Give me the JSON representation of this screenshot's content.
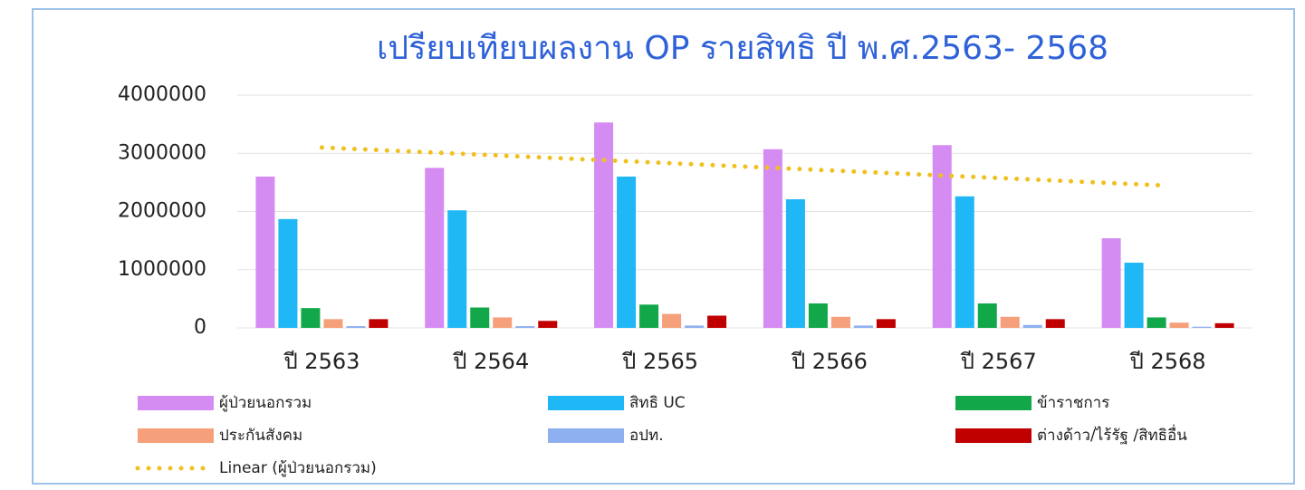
{
  "chart_data": {
    "type": "bar",
    "title": "เปรียบเทียบผลงาน OP รายสิทธิ ปี พ.ศ.2563- 2568",
    "categories": [
      "ปี 2563",
      "ปี 2564",
      "ปี 2565",
      "ปี 2566",
      "ปี 2567",
      "ปี 2568"
    ],
    "series": [
      {
        "name": "ผู้ป่วยนอกรวม",
        "color": "#d58cf2",
        "values": [
          2600000,
          2750000,
          3530000,
          3070000,
          3140000,
          1540000
        ]
      },
      {
        "name": "สิทธิ UC",
        "color": "#1fb7f5",
        "values": [
          1870000,
          2020000,
          2600000,
          2210000,
          2260000,
          1120000
        ]
      },
      {
        "name": "ข้าราชการ",
        "color": "#12a84a",
        "values": [
          340000,
          350000,
          400000,
          420000,
          420000,
          180000
        ]
      },
      {
        "name": "ประกันสังคม",
        "color": "#f5a07a",
        "values": [
          150000,
          180000,
          240000,
          190000,
          190000,
          90000
        ]
      },
      {
        "name": "อปท.",
        "color": "#8fb0f0",
        "values": [
          30000,
          30000,
          40000,
          40000,
          50000,
          20000
        ]
      },
      {
        "name": "ต่างด้าว/ไร้รัฐ /สิทธิอื่น",
        "color": "#c00000",
        "values": [
          150000,
          120000,
          210000,
          150000,
          150000,
          80000
        ]
      }
    ],
    "trendline": {
      "name": "Linear (ผู้ป่วยนอกรวม)",
      "color": "#f0c020",
      "series": 0,
      "kind": "linear"
    },
    "ylim": [
      0,
      4000000
    ],
    "yticks": [
      0,
      1000000,
      2000000,
      3000000,
      4000000
    ],
    "grid": true
  }
}
